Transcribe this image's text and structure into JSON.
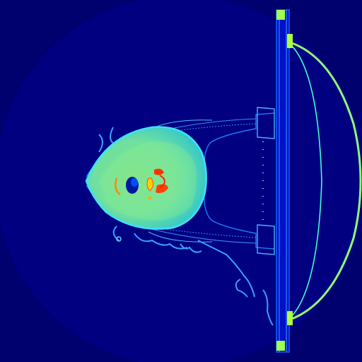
{
  "image": {
    "description_key": "ct-scan-axial-jet-colormap",
    "colormap": [
      "#00007f",
      "#0000ff",
      "#00ffff",
      "#7fff7f",
      "#ffff00",
      "#ff0000"
    ],
    "background_color": "#00006e",
    "fov_ring_color": "#000080"
  }
}
